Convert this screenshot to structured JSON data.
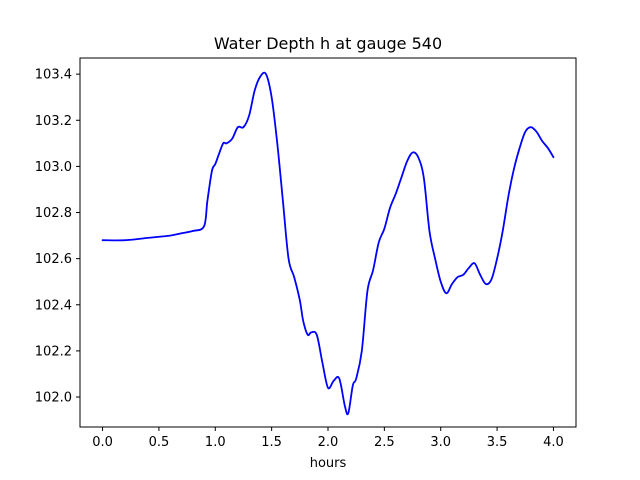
{
  "chart_data": {
    "type": "line",
    "title": "Water Depth h at gauge 540",
    "xlabel": "hours",
    "ylabel": "",
    "xlim": [
      -0.2,
      4.2
    ],
    "ylim": [
      101.87,
      103.47
    ],
    "grid": false,
    "xticks": [
      0.0,
      0.5,
      1.0,
      1.5,
      2.0,
      2.5,
      3.0,
      3.5,
      4.0
    ],
    "xtick_labels": [
      "0.0",
      "0.5",
      "1.0",
      "1.5",
      "2.0",
      "2.5",
      "3.0",
      "3.5",
      "4.0"
    ],
    "yticks": [
      102.0,
      102.2,
      102.4,
      102.6,
      102.8,
      103.0,
      103.2,
      103.4
    ],
    "ytick_labels": [
      "102.0",
      "102.2",
      "102.4",
      "102.6",
      "102.8",
      "103.0",
      "103.2",
      "103.4"
    ],
    "line_color": "#0000ff",
    "series": [
      {
        "x": [
          0.0,
          0.2,
          0.4,
          0.6,
          0.7,
          0.8,
          0.9,
          0.93,
          0.97,
          1.0,
          1.03,
          1.07,
          1.1,
          1.15,
          1.2,
          1.25,
          1.3,
          1.35,
          1.4,
          1.45,
          1.5,
          1.55,
          1.6,
          1.65,
          1.7,
          1.75,
          1.78,
          1.82,
          1.85,
          1.9,
          1.95,
          2.0,
          2.05,
          2.1,
          2.15,
          2.18,
          2.22,
          2.25,
          2.3,
          2.35,
          2.4,
          2.45,
          2.5,
          2.55,
          2.6,
          2.65,
          2.7,
          2.75,
          2.8,
          2.85,
          2.9,
          2.95,
          3.0,
          3.05,
          3.1,
          3.15,
          3.2,
          3.25,
          3.3,
          3.35,
          3.4,
          3.45,
          3.5,
          3.55,
          3.6,
          3.65,
          3.7,
          3.75,
          3.8,
          3.85,
          3.9,
          3.95,
          4.0
        ],
        "y": [
          102.68,
          102.68,
          102.69,
          102.7,
          102.71,
          102.72,
          102.74,
          102.85,
          102.98,
          103.01,
          103.05,
          103.1,
          103.1,
          103.12,
          103.17,
          103.17,
          103.22,
          103.33,
          103.39,
          103.4,
          103.3,
          103.1,
          102.85,
          102.6,
          102.52,
          102.42,
          102.33,
          102.27,
          102.28,
          102.27,
          102.15,
          102.04,
          102.07,
          102.08,
          101.96,
          101.93,
          102.05,
          102.08,
          102.2,
          102.46,
          102.55,
          102.67,
          102.73,
          102.82,
          102.88,
          102.95,
          103.02,
          103.06,
          103.04,
          102.95,
          102.72,
          102.6,
          102.5,
          102.45,
          102.49,
          102.52,
          102.53,
          102.56,
          102.58,
          102.53,
          102.49,
          102.51,
          102.6,
          102.72,
          102.87,
          102.99,
          103.08,
          103.15,
          103.17,
          103.15,
          103.11,
          103.08,
          103.04
        ]
      }
    ]
  }
}
